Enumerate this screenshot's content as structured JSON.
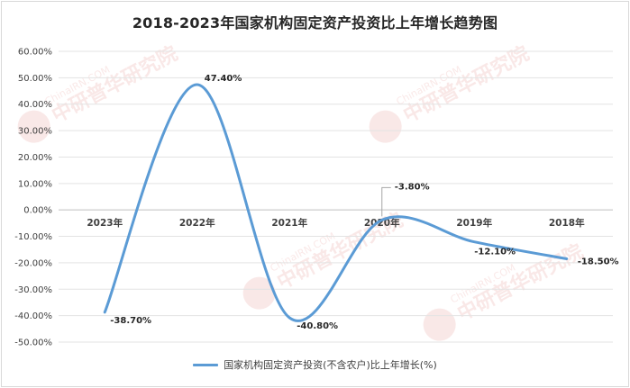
{
  "chart_data": {
    "type": "line",
    "title": "2018-2023年国家机构固定资产投资比上年增长趋势图",
    "categories": [
      "2023年",
      "2022年",
      "2021年",
      "2020年",
      "2019年",
      "2018年"
    ],
    "series": [
      {
        "name": "国家机构固定资产投资(不含农户)比上年增长(%)",
        "values": [
          -38.7,
          47.4,
          -40.8,
          -3.8,
          -12.1,
          -18.5
        ],
        "labels": [
          "-38.70%",
          "47.40%",
          "-40.80%",
          "-3.80%",
          "-12.10%",
          "-18.50%"
        ],
        "color": "#5b9bd5"
      }
    ],
    "ylim": [
      -50,
      60
    ],
    "ytick_step": 10,
    "ytick_labels": [
      "60.00%",
      "50.00%",
      "40.00%",
      "30.00%",
      "20.00%",
      "10.00%",
      "0.00%",
      "-10.00%",
      "-20.00%",
      "-30.00%",
      "-40.00%",
      "-50.00%"
    ],
    "grid": true,
    "smooth": true,
    "legend": "bottom",
    "watermark": "ChinaIRN.COM 中研普华研究院 CIRN"
  }
}
